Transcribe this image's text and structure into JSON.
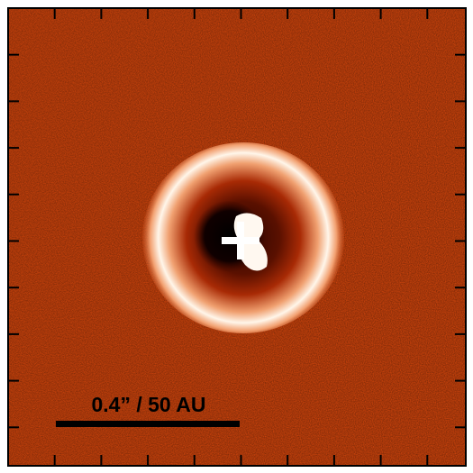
{
  "scale_bar": {
    "label": "0.4” / 50 AU"
  }
}
